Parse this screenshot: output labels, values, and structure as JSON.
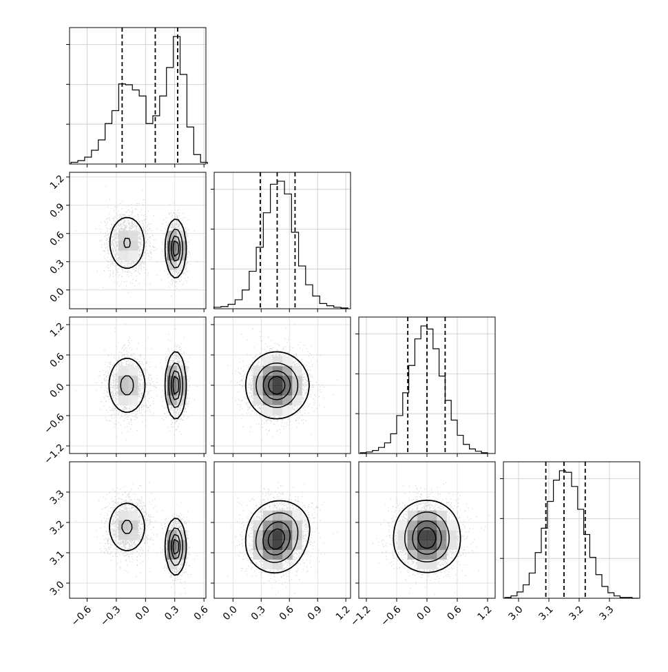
{
  "chart_data": {
    "type": "corner",
    "description_source": "corner plot of 4 parameters; histograms on diagonal with 16/50/84 percentile dashed lines; 2D density panels below diagonal",
    "params": [
      {
        "ticks": [
          -0.6,
          -0.3,
          0.0,
          0.3,
          0.6
        ],
        "tick_labels": [
          "−0.6",
          "−0.3",
          "0.0",
          "0.3",
          "0.6"
        ],
        "range": [
          -0.78,
          0.62
        ],
        "quantiles": [
          -0.24,
          0.1,
          0.33
        ],
        "hist_x": [
          -0.73,
          -0.66,
          -0.59,
          -0.52,
          -0.45,
          -0.38,
          -0.31,
          -0.24,
          -0.17,
          -0.1,
          -0.03,
          0.04,
          0.11,
          0.18,
          0.25,
          0.32,
          0.39,
          0.46,
          0.53,
          0.6
        ],
        "hist_counts": [
          2,
          4,
          8,
          16,
          28,
          47,
          62,
          93,
          92,
          86,
          79,
          47,
          56,
          79,
          112,
          148,
          104,
          43,
          11,
          2
        ]
      },
      {
        "ticks": [
          0.0,
          0.3,
          0.6,
          0.9,
          1.2
        ],
        "tick_labels": [
          "0.0",
          "0.3",
          "0.6",
          "0.9",
          "1.2"
        ],
        "range": [
          -0.2,
          1.25
        ],
        "quantiles": [
          0.29,
          0.47,
          0.66
        ],
        "hist_x": [
          -0.165,
          -0.09,
          -0.015,
          0.06,
          0.135,
          0.21,
          0.285,
          0.36,
          0.435,
          0.51,
          0.585,
          0.66,
          0.735,
          0.81,
          0.885,
          0.96,
          1.035,
          1.11,
          1.185
        ],
        "hist_counts": [
          2,
          3,
          6,
          12,
          25,
          50,
          82,
          128,
          166,
          170,
          153,
          102,
          57,
          32,
          17,
          7,
          4,
          2,
          1
        ]
      },
      {
        "ticks": [
          -1.2,
          -0.6,
          0.0,
          0.6,
          1.2
        ],
        "tick_labels": [
          "−1.2",
          "−0.6",
          "0.0",
          "0.6",
          "1.2"
        ],
        "range": [
          -1.35,
          1.35
        ],
        "quantiles": [
          -0.38,
          0.0,
          0.36
        ],
        "hist_x": [
          -1.26,
          -1.14,
          -1.02,
          -0.9,
          -0.78,
          -0.66,
          -0.54,
          -0.42,
          -0.3,
          -0.18,
          -0.06,
          0.06,
          0.18,
          0.3,
          0.42,
          0.54,
          0.66,
          0.78,
          0.9,
          1.02,
          1.14
        ],
        "hist_counts": [
          1,
          2,
          4,
          8,
          14,
          26,
          50,
          80,
          116,
          151,
          168,
          164,
          138,
          102,
          70,
          44,
          24,
          12,
          6,
          3,
          1
        ]
      },
      {
        "ticks": [
          3.0,
          3.1,
          3.2,
          3.3
        ],
        "tick_labels": [
          "3.0",
          "3.1",
          "3.2",
          "3.3"
        ],
        "range": [
          2.95,
          3.4
        ],
        "quantiles": [
          3.09,
          3.15,
          3.22
        ],
        "hist_x": [
          2.965,
          2.985,
          3.005,
          3.025,
          3.045,
          3.065,
          3.085,
          3.105,
          3.125,
          3.145,
          3.165,
          3.185,
          3.205,
          3.225,
          3.245,
          3.265,
          3.285,
          3.305,
          3.325,
          3.345,
          3.365,
          3.385
        ],
        "hist_counts": [
          1,
          3,
          8,
          17,
          32,
          58,
          89,
          123,
          150,
          162,
          160,
          142,
          113,
          81,
          52,
          30,
          15,
          7,
          3,
          1,
          1,
          0
        ]
      }
    ],
    "components": [
      {
        "weight": 0.5,
        "mean": [
          -0.19,
          0.5,
          0.0,
          3.185
        ],
        "sd": [
          0.11,
          0.17,
          0.32,
          0.048
        ]
      },
      {
        "weight": 0.5,
        "mean": [
          0.31,
          0.44,
          0.0,
          3.12
        ],
        "sd": [
          0.05,
          0.15,
          0.32,
          0.045
        ]
      }
    ]
  }
}
